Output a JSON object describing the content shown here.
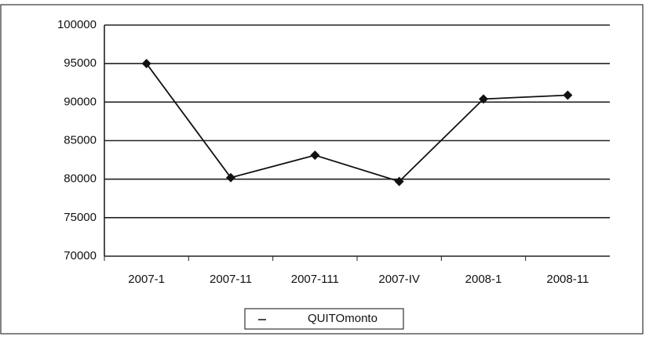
{
  "chart_data": {
    "type": "line",
    "categories": [
      "2007-1",
      "2007-11",
      "2007-111",
      "2007-IV",
      "2008-1",
      "2008-11"
    ],
    "series": [
      {
        "name": "QUITOmonto",
        "color": "#111111",
        "values": [
          95000,
          80200,
          83100,
          79700,
          90400,
          90900
        ]
      }
    ],
    "ylim": [
      70000,
      100000
    ],
    "yticks": [
      70000,
      75000,
      80000,
      85000,
      90000,
      95000,
      100000
    ],
    "grid": true,
    "legend": "bottom"
  }
}
